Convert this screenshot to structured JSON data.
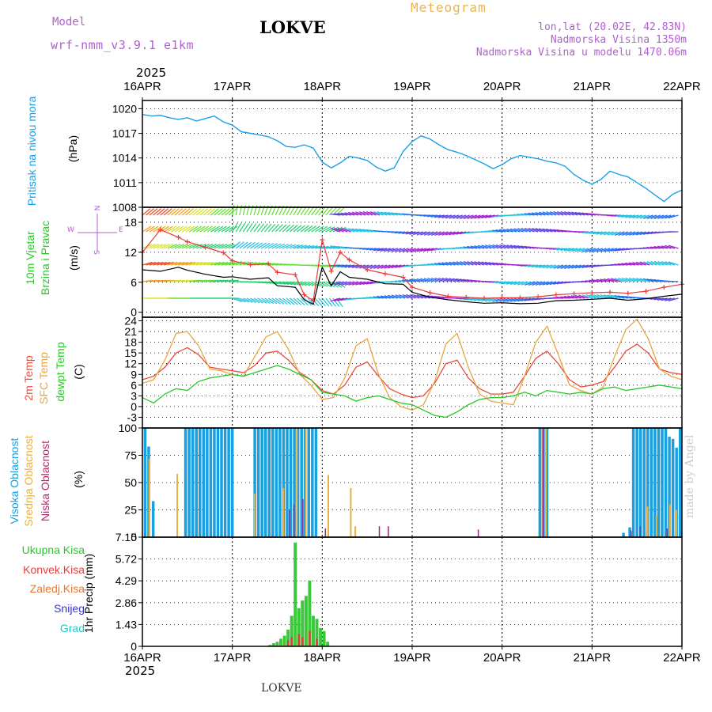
{
  "header": {
    "model_label": "Model",
    "model_version": "wrf-nmm_v3.9.1 e1km",
    "station": "LOKVE",
    "title": "Meteogram",
    "lonlat": "lon,lat (20.02E, 42.83N)",
    "elevation": "Nadmorska Visina 1350m",
    "model_elevation": "Nadmorska Visina u modelu 1470.06m"
  },
  "year": "2025",
  "footer_station": "LOKVE",
  "credit": "made by Angel",
  "colors": {
    "pressure": "#1aa0e8",
    "temp2m": "#e84a3c",
    "sfc": "#e8a640",
    "dewpt": "#28c828",
    "high_cloud": "#18a0e0",
    "mid_cloud": "#e8b040",
    "low_cloud": "#a0208a",
    "total_precip": "#3cc83c",
    "conv_precip": "#e83c3c",
    "gust": "#e83c3c",
    "windspeed": "#000000"
  },
  "chart_data": [
    {
      "type": "line",
      "panel": "pressure",
      "ylabel_main": "Pritisak na nivou mora",
      "ylabel_unit": "(hPa)",
      "ylim": [
        1008,
        1021
      ],
      "yticks": [
        "1008",
        "1011",
        "1014",
        "1017",
        "1020"
      ],
      "x_categories": [
        "16APR",
        "17APR",
        "18APR",
        "19APR",
        "20APR",
        "21APR",
        "22APR"
      ],
      "series": [
        {
          "x": [
            0,
            0.1,
            0.2,
            0.3,
            0.4,
            0.5,
            0.6,
            0.7,
            0.8,
            0.9,
            1.0,
            1.1,
            1.2,
            1.3,
            1.4,
            1.5,
            1.6,
            1.7,
            1.8,
            1.9,
            2.0,
            2.1,
            2.2,
            2.3,
            2.4,
            2.5,
            2.6,
            2.7,
            2.8,
            2.9,
            3.0,
            3.1,
            3.2,
            3.3,
            3.4,
            3.5,
            3.6,
            3.7,
            3.8,
            3.9,
            4.0,
            4.1,
            4.2,
            4.3,
            4.4,
            4.5,
            4.6,
            4.7,
            4.8,
            4.9,
            5.0,
            5.1,
            5.2,
            5.3,
            5.4,
            5.5,
            5.6,
            5.7,
            5.8,
            5.9,
            6.0
          ],
          "values": [
            1019.3,
            1019.1,
            1019.2,
            1018.9,
            1018.7,
            1018.9,
            1018.5,
            1018.8,
            1019.1,
            1018.4,
            1018.0,
            1017.2,
            1017.0,
            1016.8,
            1016.6,
            1016.1,
            1015.4,
            1015.3,
            1015.6,
            1015.2,
            1013.5,
            1012.8,
            1013.4,
            1014.2,
            1014.0,
            1013.7,
            1012.9,
            1012.4,
            1012.8,
            1014.8,
            1016.0,
            1016.7,
            1016.3,
            1015.6,
            1015.0,
            1014.7,
            1014.3,
            1013.8,
            1013.3,
            1012.7,
            1013.2,
            1013.9,
            1014.3,
            1014.1,
            1013.9,
            1013.6,
            1013.4,
            1013.0,
            1012.0,
            1011.3,
            1010.8,
            1011.4,
            1012.4,
            1012.0,
            1011.7,
            1011.0,
            1010.3,
            1009.5,
            1008.7,
            1009.6,
            1010.1
          ]
        }
      ]
    },
    {
      "type": "line",
      "panel": "wind",
      "ylabel_main": "10m Vjetar",
      "ylabel_sub": "Brzina i Pravac",
      "ylabel_unit": "(m/s)",
      "compass": {
        "n": "N",
        "s": "S",
        "w": "W",
        "e": "E"
      },
      "ylim": [
        -1,
        21
      ],
      "yticks": [
        "0",
        "6",
        "12",
        "18"
      ],
      "series": [
        {
          "name": "",
          "x": [
            0,
            0.2,
            0.4,
            0.5,
            0.7,
            0.9,
            1.0,
            1.2,
            1.4,
            1.5,
            1.7,
            1.8,
            1.9,
            2.0,
            2.1,
            2.2,
            2.3,
            2.5,
            2.7,
            2.9,
            3.0,
            3.2,
            3.4,
            3.6,
            3.8,
            4.0,
            4.2,
            4.4,
            4.6,
            4.8,
            5.0,
            5.2,
            5.4,
            5.6,
            5.8,
            6.0
          ],
          "values": [
            8.5,
            8.2,
            9.0,
            8.4,
            7.6,
            7.0,
            7.1,
            6.6,
            6.9,
            5.3,
            5.0,
            2.5,
            1.6,
            9.0,
            5.3,
            8.1,
            7.0,
            6.6,
            5.7,
            5.6,
            4.0,
            3.0,
            2.5,
            2.1,
            1.8,
            1.9,
            1.7,
            1.8,
            2.3,
            2.4,
            2.6,
            2.8,
            2.4,
            2.7,
            3.2,
            3.6
          ]
        },
        {
          "name": "",
          "x": [
            0,
            0.2,
            0.4,
            0.5,
            0.7,
            0.9,
            1.0,
            1.2,
            1.4,
            1.5,
            1.7,
            1.8,
            1.9,
            2.0,
            2.1,
            2.2,
            2.3,
            2.5,
            2.7,
            2.9,
            3.0,
            3.2,
            3.4,
            3.6,
            3.8,
            4.0,
            4.2,
            4.4,
            4.6,
            4.8,
            5.0,
            5.2,
            5.4,
            5.6,
            5.8,
            6.0
          ],
          "values": [
            12.0,
            16.5,
            15.0,
            14.1,
            13.0,
            11.9,
            10.3,
            9.5,
            9.7,
            8.0,
            7.5,
            3.5,
            2.3,
            14.5,
            8.2,
            12.0,
            10.5,
            8.5,
            7.7,
            7.0,
            5.0,
            3.9,
            3.2,
            3.0,
            2.8,
            2.9,
            2.9,
            3.1,
            3.5,
            3.7,
            3.9,
            4.0,
            3.8,
            4.2,
            5.0,
            5.6
          ]
        }
      ]
    },
    {
      "type": "line",
      "panel": "temperature",
      "ylabel_lines": [
        "2m Temp",
        "SFC Temp",
        "dewpt Temp"
      ],
      "ylabel_unit": "(C)",
      "ylim": [
        -6,
        25
      ],
      "yticks": [
        "-3",
        "0",
        "3",
        "6",
        "9",
        "12",
        "15",
        "18",
        "21",
        "24"
      ],
      "series": [
        {
          "name": "2m Temp",
          "x": [
            0,
            0.125,
            0.25,
            0.375,
            0.5,
            0.625,
            0.75,
            0.875,
            1.0,
            1.125,
            1.25,
            1.375,
            1.5,
            1.625,
            1.75,
            1.875,
            2.0,
            2.125,
            2.25,
            2.375,
            2.5,
            2.625,
            2.75,
            2.875,
            3.0,
            3.125,
            3.25,
            3.375,
            3.5,
            3.625,
            3.75,
            3.875,
            4.0,
            4.125,
            4.25,
            4.375,
            4.5,
            4.625,
            4.75,
            4.875,
            5.0,
            5.125,
            5.25,
            5.375,
            5.5,
            5.625,
            5.75,
            5.875,
            6.0
          ],
          "values": [
            7.5,
            8.5,
            11.0,
            15.0,
            16.5,
            14.5,
            11.0,
            10.5,
            10.0,
            9.5,
            11.5,
            15.0,
            15.5,
            13.0,
            9.5,
            7.5,
            4.5,
            3.5,
            6.0,
            11.0,
            12.5,
            8.5,
            5.0,
            3.5,
            2.5,
            3.0,
            6.5,
            12.0,
            13.0,
            8.0,
            5.0,
            3.5,
            3.5,
            4.0,
            8.5,
            13.5,
            15.5,
            12.0,
            7.5,
            5.5,
            6.0,
            7.0,
            11.0,
            15.5,
            17.5,
            15.0,
            10.5,
            9.5,
            9.0
          ]
        },
        {
          "name": "SFC Temp",
          "x": [
            0,
            0.125,
            0.25,
            0.375,
            0.5,
            0.625,
            0.75,
            0.875,
            1.0,
            1.125,
            1.25,
            1.375,
            1.5,
            1.625,
            1.75,
            1.875,
            2.0,
            2.125,
            2.25,
            2.375,
            2.5,
            2.625,
            2.75,
            2.875,
            3.0,
            3.125,
            3.25,
            3.375,
            3.5,
            3.625,
            3.75,
            3.875,
            4.0,
            4.125,
            4.25,
            4.375,
            4.5,
            4.625,
            4.75,
            4.875,
            5.0,
            5.125,
            5.25,
            5.375,
            5.5,
            5.625,
            5.75,
            5.875,
            6.0
          ],
          "values": [
            6.5,
            7.5,
            13.0,
            20.5,
            21.0,
            17.0,
            10.5,
            10.0,
            9.0,
            8.5,
            14.0,
            19.5,
            21.0,
            16.0,
            9.0,
            6.0,
            2.0,
            2.5,
            8.0,
            17.0,
            19.0,
            9.0,
            2.5,
            0.0,
            -1.0,
            0.5,
            7.0,
            17.5,
            20.5,
            11.0,
            3.5,
            1.5,
            1.0,
            0.5,
            8.5,
            18.0,
            22.5,
            14.5,
            6.0,
            4.5,
            3.5,
            5.5,
            14.0,
            21.5,
            24.5,
            19.0,
            10.5,
            8.5,
            7.5
          ]
        },
        {
          "name": "dewpt Temp",
          "x": [
            0,
            0.125,
            0.25,
            0.375,
            0.5,
            0.625,
            0.75,
            0.875,
            1.0,
            1.125,
            1.25,
            1.375,
            1.5,
            1.625,
            1.75,
            1.875,
            2.0,
            2.125,
            2.25,
            2.375,
            2.5,
            2.625,
            2.75,
            2.875,
            3.0,
            3.125,
            3.25,
            3.375,
            3.5,
            3.625,
            3.75,
            3.875,
            4.0,
            4.125,
            4.25,
            4.375,
            4.5,
            4.625,
            4.75,
            4.875,
            5.0,
            5.125,
            5.25,
            5.375,
            5.5,
            5.625,
            5.75,
            5.875,
            6.0
          ],
          "values": [
            2.5,
            1.0,
            3.5,
            5.0,
            4.5,
            7.0,
            8.0,
            8.5,
            9.0,
            8.5,
            9.5,
            10.5,
            11.5,
            10.5,
            9.0,
            7.5,
            4.0,
            3.5,
            3.0,
            1.5,
            2.5,
            3.0,
            2.0,
            1.0,
            0.5,
            -1.0,
            -2.5,
            -3.0,
            -1.5,
            0.5,
            2.0,
            2.5,
            2.5,
            3.0,
            4.0,
            3.0,
            4.5,
            4.0,
            3.5,
            4.0,
            3.5,
            5.0,
            5.5,
            4.5,
            5.0,
            5.5,
            6.0,
            5.5,
            5.0
          ]
        }
      ]
    },
    {
      "type": "bar",
      "panel": "cloud",
      "ylabel_lines": [
        "Visoka Oblacnost",
        "Srednja Oblacnost",
        "Niska Oblacnost"
      ],
      "ylabel_unit": "(%)",
      "ylim": [
        0,
        100
      ],
      "yticks": [
        "0",
        "25",
        "50",
        "75",
        "100"
      ],
      "series": [
        {
          "name": "Visoka Oblacnost",
          "x": [
            0.03,
            0.07,
            0.12,
            0.48,
            0.52,
            0.56,
            0.6,
            0.64,
            0.68,
            0.72,
            0.76,
            0.8,
            0.84,
            0.88,
            0.92,
            0.96,
            1.0,
            1.25,
            1.29,
            1.33,
            1.37,
            1.41,
            1.45,
            1.49,
            1.53,
            1.57,
            1.61,
            1.65,
            1.69,
            1.73,
            1.77,
            1.81,
            1.85,
            1.89,
            1.93,
            4.42,
            4.46,
            4.5,
            5.35,
            5.42,
            5.46,
            5.5,
            5.54,
            5.58,
            5.62,
            5.66,
            5.7,
            5.74,
            5.78,
            5.82,
            5.86,
            5.9,
            5.94,
            5.98
          ],
          "values": [
            100,
            83,
            33,
            100,
            100,
            100,
            100,
            100,
            100,
            100,
            100,
            100,
            100,
            100,
            100,
            100,
            100,
            100,
            100,
            100,
            100,
            100,
            100,
            100,
            100,
            100,
            100,
            100,
            100,
            100,
            100,
            100,
            100,
            100,
            100,
            100,
            100,
            100,
            4,
            9,
            100,
            100,
            100,
            100,
            100,
            100,
            100,
            100,
            100,
            100,
            92,
            90,
            82,
            100
          ]
        },
        {
          "name": "Srednja Oblacnost",
          "x": [
            0.06,
            0.37,
            1.23,
            1.55,
            1.7,
            1.8,
            2.05,
            2.3,
            2.35,
            4.43,
            4.47,
            5.6,
            5.7,
            5.85,
            5.92
          ],
          "values": [
            72,
            58,
            40,
            45,
            100,
            100,
            57,
            45,
            10,
            100,
            100,
            28,
            20,
            30,
            25
          ]
        },
        {
          "name": "Niska Oblacnost",
          "x": [
            1.6,
            1.65,
            1.75,
            2.0,
            2.6,
            2.7,
            3.7,
            4.42,
            5.4,
            5.5,
            5.8
          ],
          "values": [
            25,
            30,
            35,
            8,
            10,
            10,
            7,
            100,
            6,
            10,
            8
          ]
        }
      ]
    },
    {
      "type": "bar",
      "panel": "precip",
      "legend": [
        "Ukupna Kisa",
        "Konvek.Kisa",
        "Zaledj.Kisa",
        "Snijeg",
        "Grad"
      ],
      "ylabel_unit": "1hr Precip (mm)",
      "ylim": [
        0,
        7.15
      ],
      "yticks": [
        "0",
        "1.43",
        "2.86",
        "4.29",
        "5.72",
        "7.15"
      ],
      "series": [
        {
          "name": "Ukupna Kisa",
          "x": [
            1.42,
            1.46,
            1.5,
            1.54,
            1.58,
            1.62,
            1.66,
            1.7,
            1.74,
            1.78,
            1.82,
            1.86,
            1.9,
            1.94,
            1.98,
            2.02,
            2.06
          ],
          "values": [
            0.1,
            0.2,
            0.3,
            0.5,
            0.7,
            1.1,
            2.0,
            6.8,
            2.5,
            3.0,
            3.3,
            4.3,
            2.0,
            1.8,
            1.2,
            1.0,
            0.3
          ]
        },
        {
          "name": "Konvek.Kisa",
          "x": [
            1.62,
            1.66,
            1.74,
            1.78,
            1.86,
            1.94
          ],
          "values": [
            0.4,
            0.6,
            0.8,
            0.6,
            1.0,
            0.5
          ]
        },
        {
          "name": "Zaledj.Kisa",
          "x": [
            1.5,
            1.54,
            1.58
          ],
          "values": [
            0.05,
            0.1,
            0.15
          ]
        }
      ]
    }
  ]
}
